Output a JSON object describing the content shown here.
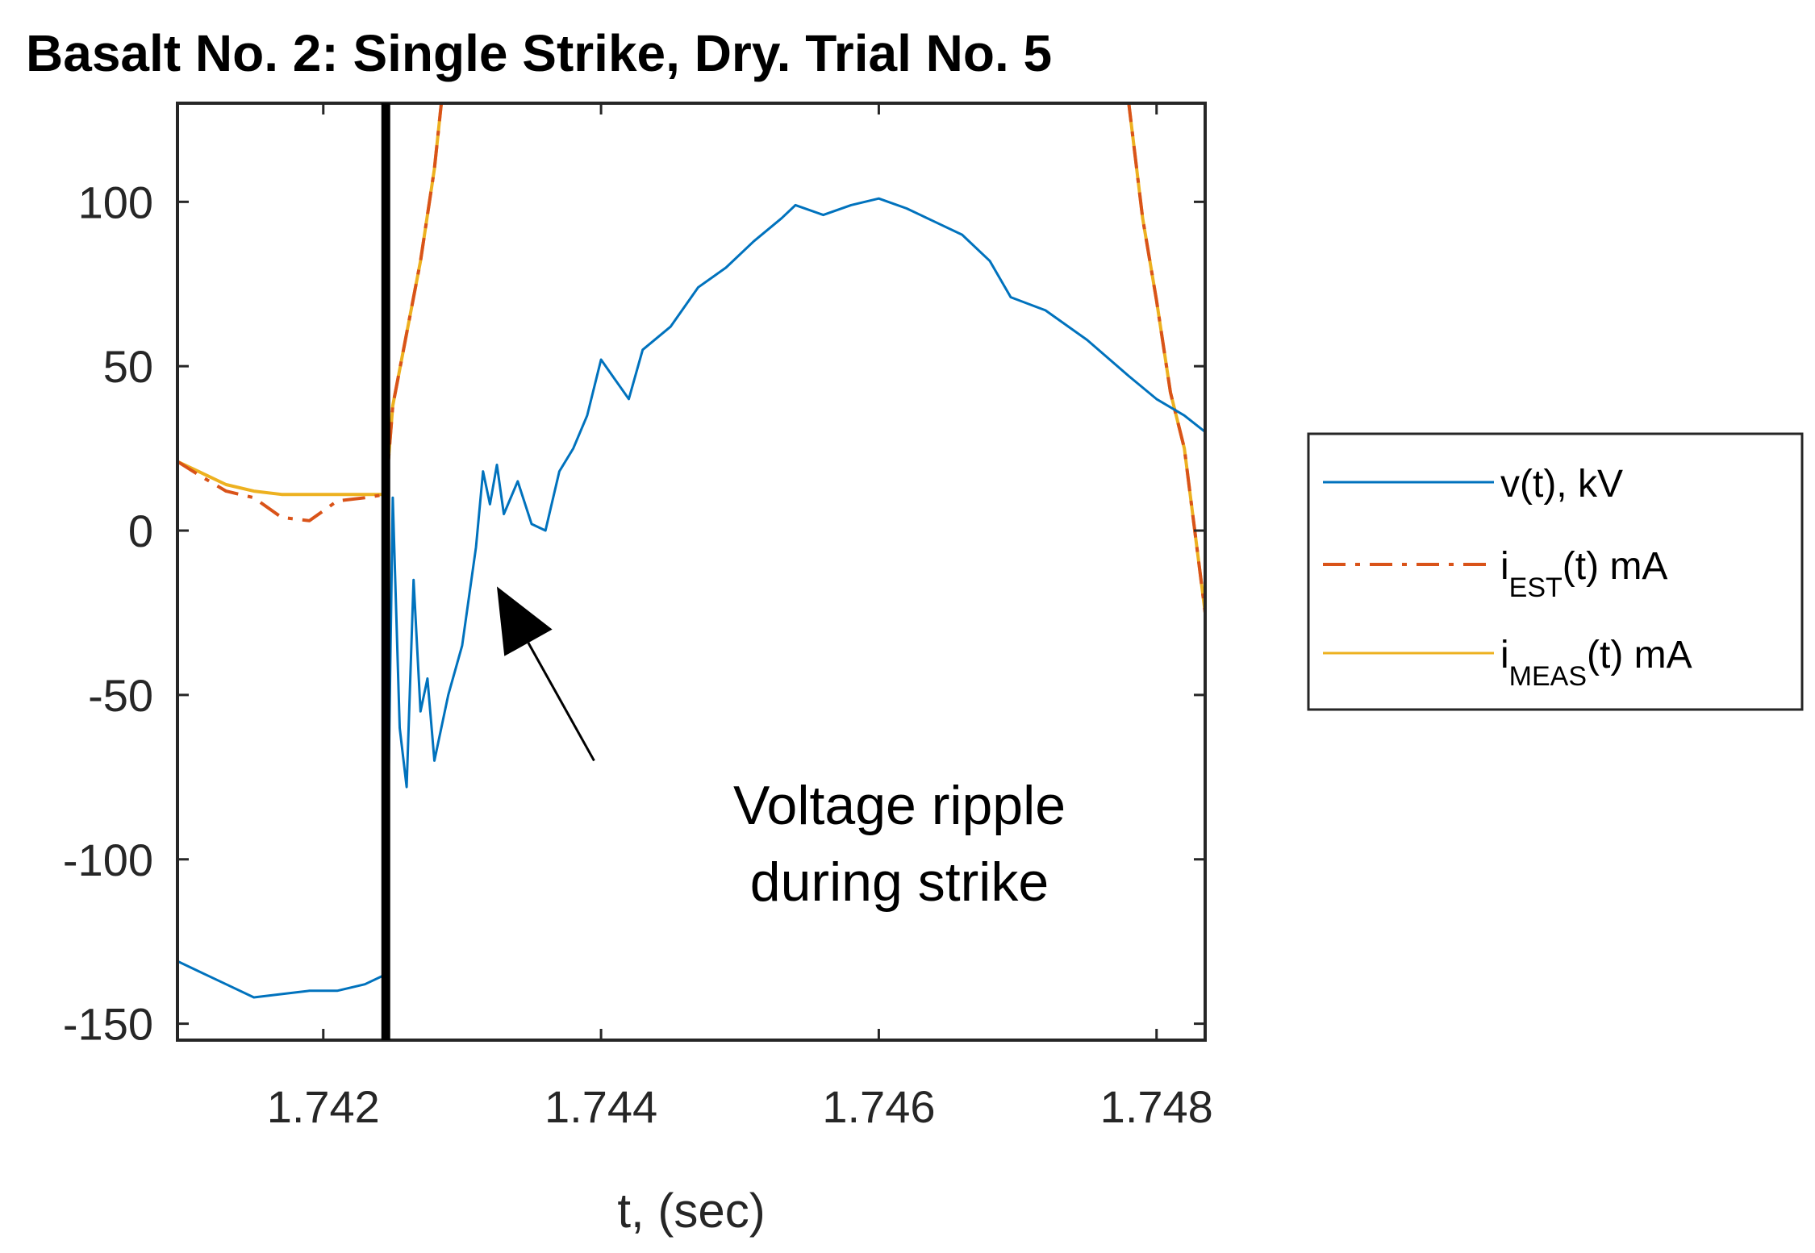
{
  "chart_data": {
    "type": "line",
    "title": "Basalt No. 2: Single Strike, Dry. Trial No. 5",
    "xlabel": "t, (sec)",
    "ylabel": "",
    "xlim": [
      1.74095,
      1.74835
    ],
    "ylim": [
      -155,
      130
    ],
    "xticks": [
      1.742,
      1.744,
      1.746,
      1.748
    ],
    "xtick_labels": [
      "1.742",
      "1.744",
      "1.746",
      "1.748"
    ],
    "yticks": [
      100,
      50,
      0,
      -50,
      -100,
      -150
    ],
    "ytick_labels": [
      "100",
      "50",
      "0",
      "-50",
      "-100",
      "-150"
    ],
    "grid": false,
    "legend_position": "outside-right",
    "strike_time": 1.74245,
    "annotation": {
      "lines": [
        "Voltage ripple",
        "during strike"
      ],
      "arrow_target": [
        1.74325,
        -17
      ],
      "arrow_tail": [
        1.74395,
        -70
      ]
    },
    "series": [
      {
        "name": "v(t), kV",
        "legend_label": "v(t), kV",
        "color": "#0072BD",
        "style": "solid",
        "x": [
          1.74095,
          1.7411,
          1.7413,
          1.7415,
          1.7417,
          1.7419,
          1.7421,
          1.7423,
          1.74245,
          1.7425,
          1.74255,
          1.7426,
          1.74265,
          1.7427,
          1.74275,
          1.7428,
          1.7429,
          1.743,
          1.7431,
          1.74315,
          1.7432,
          1.74325,
          1.7433,
          1.7434,
          1.7435,
          1.7436,
          1.7437,
          1.7438,
          1.7439,
          1.744,
          1.7441,
          1.7442,
          1.7443,
          1.7445,
          1.7447,
          1.7449,
          1.7451,
          1.7453,
          1.7454,
          1.7456,
          1.7458,
          1.746,
          1.7462,
          1.7464,
          1.7466,
          1.7468,
          1.74695,
          1.7472,
          1.7475,
          1.7478,
          1.748,
          1.7482,
          1.74835
        ],
        "y": [
          -131,
          -134,
          -138,
          -142,
          -141,
          -140,
          -140,
          -138,
          -135,
          10,
          -60,
          -78,
          -15,
          -55,
          -45,
          -70,
          -50,
          -35,
          -5,
          18,
          8,
          20,
          5,
          15,
          2,
          0,
          18,
          25,
          35,
          52,
          46,
          40,
          55,
          62,
          74,
          80,
          88,
          95,
          99,
          96,
          99,
          101,
          98,
          94,
          90,
          82,
          71,
          67,
          58,
          47,
          40,
          35,
          30
        ]
      },
      {
        "name": "iEST(t) mA",
        "legend_label_base": "i",
        "legend_label_sub": "EST",
        "legend_label_suffix": "(t) mA",
        "color": "#D95319",
        "style": "dashdot",
        "x": [
          1.74095,
          1.7411,
          1.7413,
          1.7415,
          1.7417,
          1.7419,
          1.7421,
          1.7423,
          1.74245,
          1.7425,
          1.7426,
          1.7427,
          1.7428,
          1.74285,
          1.7478,
          1.7479,
          1.748,
          1.7481,
          1.7482,
          1.74835
        ],
        "y": [
          21,
          17,
          12,
          10,
          4,
          3,
          9,
          10,
          11,
          38,
          60,
          82,
          110,
          130,
          130,
          95,
          70,
          42,
          25,
          -25
        ]
      },
      {
        "name": "iMEAS(t) mA",
        "legend_label_base": "i",
        "legend_label_sub": "MEAS",
        "legend_label_suffix": "(t) mA",
        "color": "#EDB120",
        "style": "solid",
        "x": [
          1.74095,
          1.7411,
          1.7413,
          1.7415,
          1.7417,
          1.7419,
          1.7421,
          1.7423,
          1.74245,
          1.7425,
          1.7426,
          1.7427,
          1.7428,
          1.74285,
          1.7478,
          1.7479,
          1.748,
          1.7481,
          1.7482,
          1.74835
        ],
        "y": [
          21,
          18,
          14,
          12,
          11,
          11,
          11,
          11,
          11,
          38,
          60,
          82,
          110,
          130,
          130,
          95,
          70,
          42,
          25,
          -25
        ]
      }
    ]
  }
}
